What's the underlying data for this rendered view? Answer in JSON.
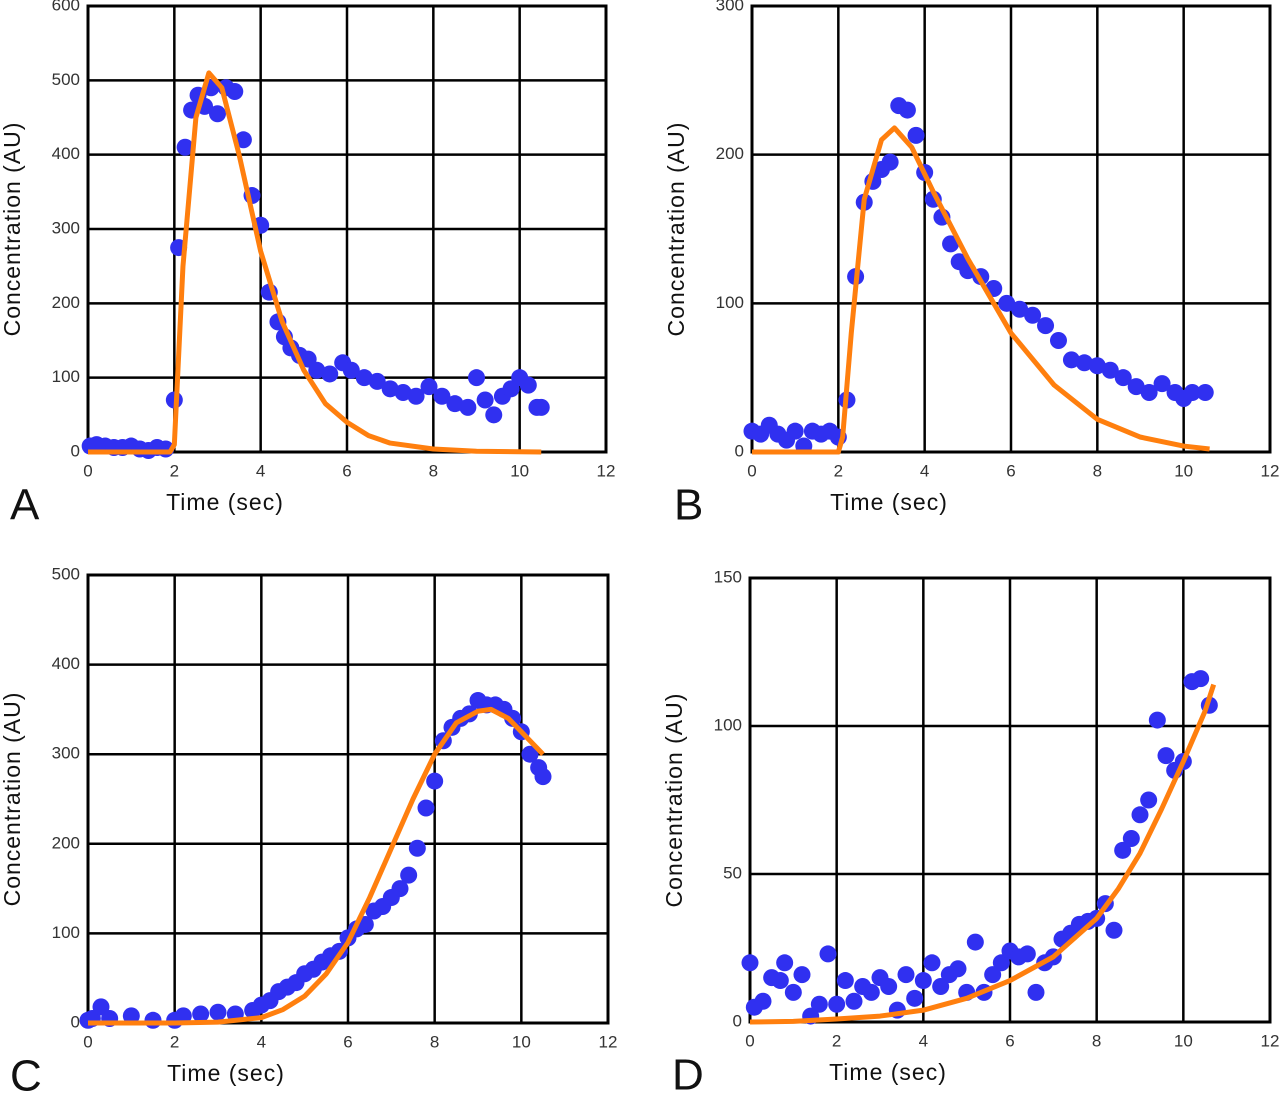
{
  "chart_data": [
    {
      "type": "scatter",
      "panel_label": "A",
      "xlabel": "Time (sec)",
      "ylabel": "Concentration (AU)",
      "xlim": [
        0,
        12
      ],
      "xticks": [
        0,
        2,
        4,
        6,
        8,
        10,
        12
      ],
      "ylim": [
        0,
        600
      ],
      "yticks": [
        0,
        100,
        200,
        300,
        400,
        500,
        600
      ],
      "grid": true,
      "series": [
        {
          "type": "scatter",
          "color": "#3030f0",
          "x": [
            0.05,
            0.2,
            0.4,
            0.6,
            0.8,
            1.0,
            1.2,
            1.4,
            1.6,
            1.8,
            2.0,
            2.1,
            2.25,
            2.4,
            2.55,
            2.7,
            2.85,
            3.0,
            3.2,
            3.4,
            3.6,
            3.8,
            4.0,
            4.2,
            4.4,
            4.55,
            4.7,
            4.9,
            5.1,
            5.3,
            5.6,
            5.9,
            6.1,
            6.4,
            6.7,
            7.0,
            7.3,
            7.6,
            7.9,
            8.2,
            8.5,
            8.8,
            9.0,
            9.2,
            9.4,
            9.6,
            9.8,
            10.0,
            10.2,
            10.4,
            10.5
          ],
          "values": [
            8,
            10,
            8,
            6,
            6,
            8,
            4,
            2,
            6,
            4,
            70,
            275,
            410,
            460,
            480,
            465,
            490,
            455,
            490,
            485,
            420,
            345,
            305,
            215,
            175,
            155,
            140,
            130,
            125,
            110,
            105,
            120,
            110,
            100,
            95,
            85,
            80,
            75,
            88,
            75,
            65,
            60,
            100,
            70,
            50,
            75,
            85,
            100,
            90,
            60,
            60
          ]
        },
        {
          "type": "line",
          "color": "#ff7f0e",
          "x": [
            0,
            1.9,
            2.0,
            2.2,
            2.5,
            2.8,
            3.1,
            3.5,
            4.0,
            4.5,
            5.0,
            5.5,
            6.0,
            6.5,
            7.0,
            8.0,
            9.0,
            10.5
          ],
          "values": [
            0,
            0,
            10,
            250,
            450,
            510,
            490,
            400,
            270,
            175,
            110,
            65,
            40,
            22,
            12,
            4,
            1,
            0
          ]
        }
      ]
    },
    {
      "type": "scatter",
      "panel_label": "B",
      "xlabel": "Time (sec)",
      "ylabel": "Concentration (AU)",
      "xlim": [
        0,
        12
      ],
      "xticks": [
        0,
        2,
        4,
        6,
        8,
        10,
        12
      ],
      "ylim": [
        0,
        300
      ],
      "yticks": [
        0,
        100,
        200,
        300
      ],
      "grid": true,
      "series": [
        {
          "type": "scatter",
          "color": "#3030f0",
          "x": [
            0,
            0.2,
            0.4,
            0.6,
            0.8,
            1.0,
            1.2,
            1.4,
            1.6,
            1.8,
            2.0,
            2.2,
            2.4,
            2.6,
            2.8,
            3.0,
            3.2,
            3.4,
            3.6,
            3.8,
            4.0,
            4.2,
            4.4,
            4.6,
            4.8,
            5.0,
            5.3,
            5.6,
            5.9,
            6.2,
            6.5,
            6.8,
            7.1,
            7.4,
            7.7,
            8.0,
            8.3,
            8.6,
            8.9,
            9.2,
            9.5,
            9.8,
            10.0,
            10.2,
            10.5
          ],
          "values": [
            14,
            12,
            18,
            12,
            8,
            14,
            4,
            14,
            12,
            14,
            10,
            35,
            118,
            168,
            182,
            190,
            195,
            233,
            230,
            213,
            188,
            170,
            158,
            140,
            128,
            122,
            118,
            110,
            100,
            96,
            92,
            85,
            75,
            62,
            60,
            58,
            55,
            50,
            44,
            40,
            46,
            40,
            36,
            40,
            40
          ]
        },
        {
          "type": "line",
          "color": "#ff7f0e",
          "x": [
            0,
            2.0,
            2.1,
            2.3,
            2.6,
            3.0,
            3.3,
            3.7,
            4.2,
            5.0,
            6.0,
            7.0,
            8.0,
            9.0,
            10.0,
            10.6
          ],
          "values": [
            0,
            0,
            10,
            80,
            170,
            210,
            218,
            205,
            175,
            130,
            80,
            45,
            22,
            10,
            4,
            2
          ]
        }
      ]
    },
    {
      "type": "scatter",
      "panel_label": "C",
      "xlabel": "Time (sec)",
      "ylabel": "Concentration (AU)",
      "xlim": [
        0,
        12
      ],
      "xticks": [
        0,
        2,
        4,
        6,
        8,
        10,
        12
      ],
      "ylim": [
        0,
        500
      ],
      "yticks": [
        0,
        100,
        200,
        300,
        400,
        500
      ],
      "grid": true,
      "series": [
        {
          "type": "scatter",
          "color": "#3030f0",
          "x": [
            0,
            0.1,
            0.3,
            0.5,
            1.0,
            1.5,
            2.0,
            2.2,
            2.6,
            3.0,
            3.4,
            3.8,
            4.0,
            4.2,
            4.4,
            4.6,
            4.8,
            5.0,
            5.2,
            5.4,
            5.6,
            5.8,
            6.0,
            6.2,
            6.4,
            6.6,
            6.8,
            7.0,
            7.2,
            7.4,
            7.6,
            7.8,
            8.0,
            8.2,
            8.4,
            8.6,
            8.8,
            9.0,
            9.2,
            9.4,
            9.6,
            9.8,
            10.0,
            10.2,
            10.4,
            10.5
          ],
          "values": [
            3,
            5,
            18,
            5,
            8,
            3,
            3,
            8,
            10,
            12,
            10,
            14,
            20,
            25,
            35,
            40,
            45,
            55,
            60,
            68,
            75,
            80,
            95,
            105,
            110,
            125,
            130,
            140,
            150,
            165,
            195,
            240,
            270,
            315,
            330,
            340,
            345,
            360,
            355,
            355,
            350,
            340,
            325,
            300,
            285,
            275
          ]
        },
        {
          "type": "line",
          "color": "#ff7f0e",
          "x": [
            0,
            2,
            3,
            4,
            4.5,
            5,
            5.5,
            6,
            6.5,
            7,
            7.5,
            8,
            8.5,
            9,
            9.3,
            9.7,
            10,
            10.5
          ],
          "values": [
            0,
            0,
            1,
            6,
            15,
            30,
            55,
            90,
            140,
            195,
            250,
            300,
            335,
            348,
            350,
            340,
            325,
            300
          ]
        }
      ]
    },
    {
      "type": "scatter",
      "panel_label": "D",
      "xlabel": "Time (sec)",
      "ylabel": "Concentration (AU)",
      "xlim": [
        0,
        12
      ],
      "xticks": [
        0,
        2,
        4,
        6,
        8,
        10,
        12
      ],
      "ylim": [
        0,
        150
      ],
      "yticks": [
        0,
        50,
        100,
        150
      ],
      "grid": true,
      "series": [
        {
          "type": "scatter",
          "color": "#3030f0",
          "x": [
            0,
            0.1,
            0.3,
            0.5,
            0.7,
            0.8,
            1.0,
            1.2,
            1.4,
            1.6,
            1.8,
            2.0,
            2.2,
            2.4,
            2.6,
            2.8,
            3.0,
            3.2,
            3.4,
            3.6,
            3.8,
            4.0,
            4.2,
            4.4,
            4.6,
            4.8,
            5.0,
            5.2,
            5.4,
            5.6,
            5.8,
            6.0,
            6.2,
            6.4,
            6.6,
            6.8,
            7.0,
            7.2,
            7.4,
            7.6,
            7.8,
            8.0,
            8.2,
            8.4,
            8.6,
            8.8,
            9.0,
            9.2,
            9.4,
            9.6,
            9.8,
            10.0,
            10.2,
            10.4,
            10.6
          ],
          "values": [
            20,
            5,
            7,
            15,
            14,
            20,
            10,
            16,
            2,
            6,
            23,
            6,
            14,
            7,
            12,
            10,
            15,
            12,
            4,
            16,
            8,
            14,
            20,
            12,
            16,
            18,
            10,
            27,
            10,
            16,
            20,
            24,
            22,
            23,
            10,
            20,
            22,
            28,
            30,
            33,
            34,
            35,
            40,
            31,
            58,
            62,
            70,
            75,
            102,
            90,
            85,
            88,
            115,
            116,
            107
          ]
        },
        {
          "type": "line",
          "color": "#ff7f0e",
          "x": [
            0,
            1,
            2,
            3,
            4,
            5,
            6,
            7,
            8,
            8.5,
            9,
            9.5,
            10,
            10.5,
            10.7
          ],
          "values": [
            0,
            0.2,
            1,
            2,
            4,
            8,
            14,
            22,
            35,
            45,
            57,
            72,
            88,
            105,
            114
          ]
        }
      ]
    }
  ]
}
